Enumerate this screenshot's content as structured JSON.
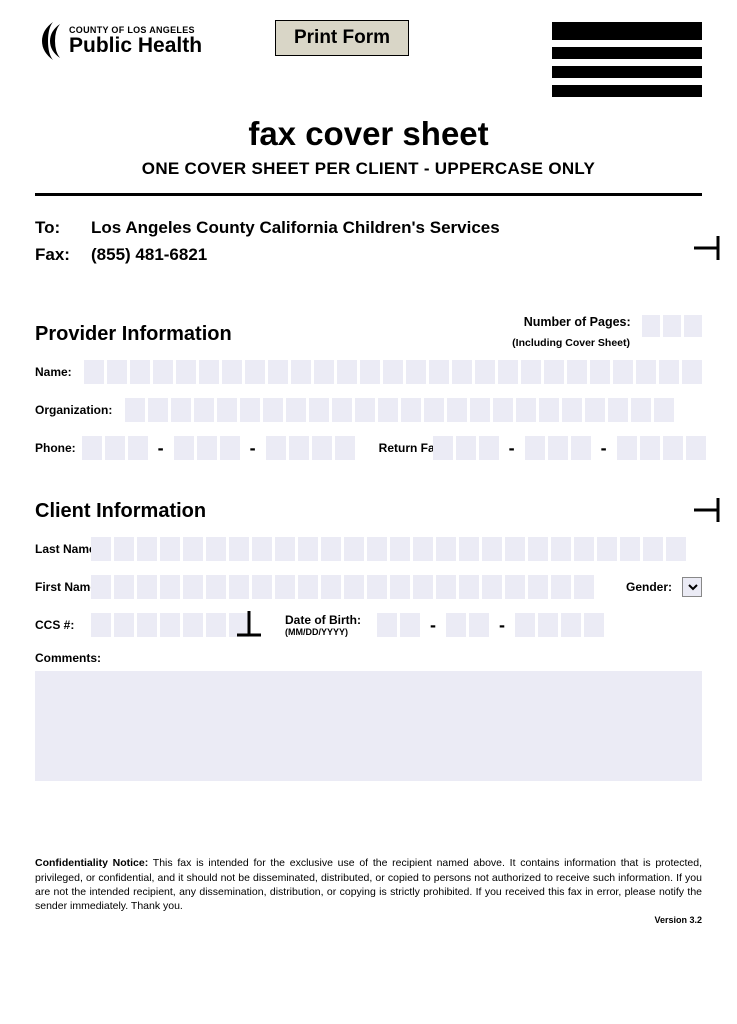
{
  "header": {
    "logo_line1": "COUNTY OF LOS ANGELES",
    "logo_line2": "Public Health",
    "print_button": "Print Form",
    "title": "fax cover sheet",
    "subtitle": "ONE COVER SHEET PER CLIENT  -  UPPERCASE ONLY"
  },
  "recipient": {
    "to_label": "To:",
    "to_value": "Los Angeles County California Children's Services",
    "fax_label": "Fax:",
    "fax_value": "(855) 481-6821"
  },
  "provider": {
    "heading": "Provider Information",
    "pages_label": "Number of Pages:",
    "pages_sublabel": "(Including Cover Sheet)",
    "name_label": "Name:",
    "name_cells": 27,
    "org_label": "Organization:",
    "org_cells": 24,
    "phone_label": "Phone:",
    "return_fax_label": "Return Fax:"
  },
  "client": {
    "heading": "Client Information",
    "last_label": "Last Name:",
    "last_cells": 26,
    "first_label": "First Name:",
    "first_cells": 22,
    "gender_label": "Gender:",
    "ccs_label": "CCS #:",
    "ccs_cells": 7,
    "dob_label": "Date of Birth:",
    "dob_sublabel": "(MM/DD/YYYY)",
    "comments_label": "Comments:"
  },
  "footer": {
    "notice_label": "Confidentiality Notice:",
    "notice_text": " This fax is intended for the exclusive use of the recipient named above.  It contains information that is protected, privileged, or confidential, and it should not be disseminated, distributed, or copied to persons not authorized to receive such information.  If you are not the intended recipient, any dissemination, distribution, or copying is strictly prohibited.  If you received this fax in error, please notify the sender immediately.  Thank you.",
    "version": "Version 3.2"
  },
  "style": {
    "cell_bg": "#ebebf5",
    "btn_bg": "#d9d6c7"
  }
}
